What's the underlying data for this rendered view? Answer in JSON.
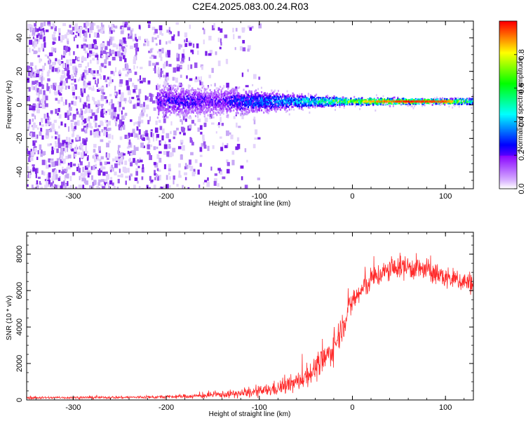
{
  "title": "C2E4.2025.083.00.24.R03",
  "chart_data": [
    {
      "type": "heatmap",
      "xlabel": "Height of straight line (km)",
      "ylabel": "Frequency (Hz)",
      "xlim": [
        -350,
        130
      ],
      "ylim": [
        -50,
        50
      ],
      "xticks": [
        -300,
        -200,
        -100,
        0,
        100
      ],
      "yticks": [
        -40,
        -20,
        0,
        20,
        40
      ],
      "colorbar": {
        "label": "Normalized spectral amplitude",
        "range": [
          0,
          1
        ],
        "ticks": [
          0.0,
          0.2,
          0.4,
          0.6,
          0.8
        ]
      },
      "ridge_frequency_hz": 2,
      "description_of_features": {
        "noise_region_x": [
          -350,
          -130
        ],
        "signal_band_center_hz": 2
      },
      "ridge_profile": {
        "x": [
          -210,
          -180,
          -150,
          -120,
          -100,
          -80,
          -60,
          -40,
          -20,
          0,
          20,
          40,
          60,
          80,
          100,
          120,
          130
        ],
        "amplitude": [
          0.22,
          0.25,
          0.2,
          0.3,
          0.35,
          0.38,
          0.45,
          0.55,
          0.7,
          0.75,
          0.85,
          0.9,
          0.95,
          0.92,
          0.9,
          0.65,
          0.55
        ],
        "half_width_hz": [
          9,
          8,
          8,
          7,
          6,
          5,
          4,
          3,
          2.5,
          2,
          2,
          2,
          1.5,
          1.5,
          1.5,
          1.8,
          2
        ]
      }
    },
    {
      "type": "line",
      "xlabel": "Height of straight line (km)",
      "ylabel": "SNR (10 * v/v)",
      "xlim": [
        -350,
        130
      ],
      "ylim": [
        0,
        9200
      ],
      "xticks": [
        -300,
        -200,
        -100,
        0,
        100
      ],
      "yticks": [
        0,
        2000,
        4000,
        6000,
        8000
      ],
      "color": "#ff2a2a",
      "envelope": {
        "x": [
          -350,
          -300,
          -250,
          -200,
          -180,
          -160,
          -140,
          -120,
          -100,
          -80,
          -60,
          -40,
          -30,
          -20,
          -15,
          -10,
          -5,
          0,
          10,
          20,
          30,
          40,
          50,
          60,
          70,
          80,
          90,
          100,
          110,
          120,
          130
        ],
        "mean": [
          120,
          130,
          140,
          160,
          200,
          230,
          300,
          350,
          450,
          650,
          950,
          1700,
          2200,
          2900,
          3500,
          4200,
          4800,
          5400,
          6000,
          6600,
          6900,
          7100,
          7300,
          7300,
          7200,
          7100,
          6900,
          6700,
          6600,
          6500,
          6400
        ],
        "spread": [
          90,
          90,
          100,
          120,
          150,
          200,
          250,
          320,
          400,
          550,
          700,
          900,
          1000,
          1100,
          1100,
          1100,
          1000,
          1000,
          900,
          900,
          850,
          850,
          850,
          900,
          900,
          850,
          800,
          800,
          800,
          800,
          800
        ]
      }
    }
  ]
}
